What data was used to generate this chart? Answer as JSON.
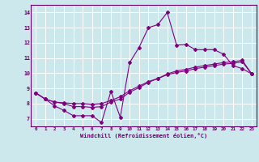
{
  "xlabel": "Windchill (Refroidissement éolien,°C)",
  "bg_color": "#cce8ec",
  "line_color": "#800080",
  "grid_color": "#ffffff",
  "xlim": [
    -0.5,
    23.5
  ],
  "ylim": [
    6.5,
    14.5
  ],
  "xticks": [
    0,
    1,
    2,
    3,
    4,
    5,
    6,
    7,
    8,
    9,
    10,
    11,
    12,
    13,
    14,
    15,
    16,
    17,
    18,
    19,
    20,
    21,
    22,
    23
  ],
  "yticks": [
    7,
    8,
    9,
    10,
    11,
    12,
    13,
    14
  ],
  "line1_x": [
    0,
    1,
    2,
    3,
    4,
    5,
    6,
    7,
    8,
    9,
    10,
    11,
    12,
    13,
    14,
    15,
    16,
    17,
    18,
    19,
    20,
    21,
    22,
    23
  ],
  "line1_y": [
    8.7,
    8.3,
    7.85,
    7.55,
    7.2,
    7.2,
    7.2,
    6.75,
    8.8,
    7.1,
    10.7,
    11.7,
    13.0,
    13.2,
    14.0,
    11.85,
    11.9,
    11.55,
    11.55,
    11.55,
    11.25,
    10.5,
    10.3,
    9.95
  ],
  "line2_x": [
    0,
    1,
    2,
    3,
    4,
    5,
    6,
    7,
    8,
    9,
    10,
    11,
    12,
    13,
    14,
    15,
    16,
    17,
    18,
    19,
    20,
    21,
    22,
    23
  ],
  "line2_y": [
    8.7,
    8.3,
    8.1,
    8.0,
    7.8,
    7.8,
    7.75,
    7.8,
    8.1,
    8.3,
    8.75,
    9.05,
    9.4,
    9.65,
    9.95,
    10.15,
    10.25,
    10.4,
    10.5,
    10.6,
    10.7,
    10.75,
    10.85,
    9.95
  ],
  "line3_x": [
    0,
    1,
    2,
    3,
    4,
    5,
    6,
    7,
    8,
    9,
    10,
    11,
    12,
    13,
    14,
    15,
    16,
    17,
    18,
    19,
    20,
    21,
    22,
    23
  ],
  "line3_y": [
    8.7,
    8.3,
    8.1,
    8.05,
    8.0,
    8.0,
    7.95,
    8.0,
    8.2,
    8.45,
    8.85,
    9.15,
    9.45,
    9.65,
    9.9,
    10.05,
    10.15,
    10.3,
    10.4,
    10.5,
    10.6,
    10.65,
    10.75,
    9.95
  ]
}
